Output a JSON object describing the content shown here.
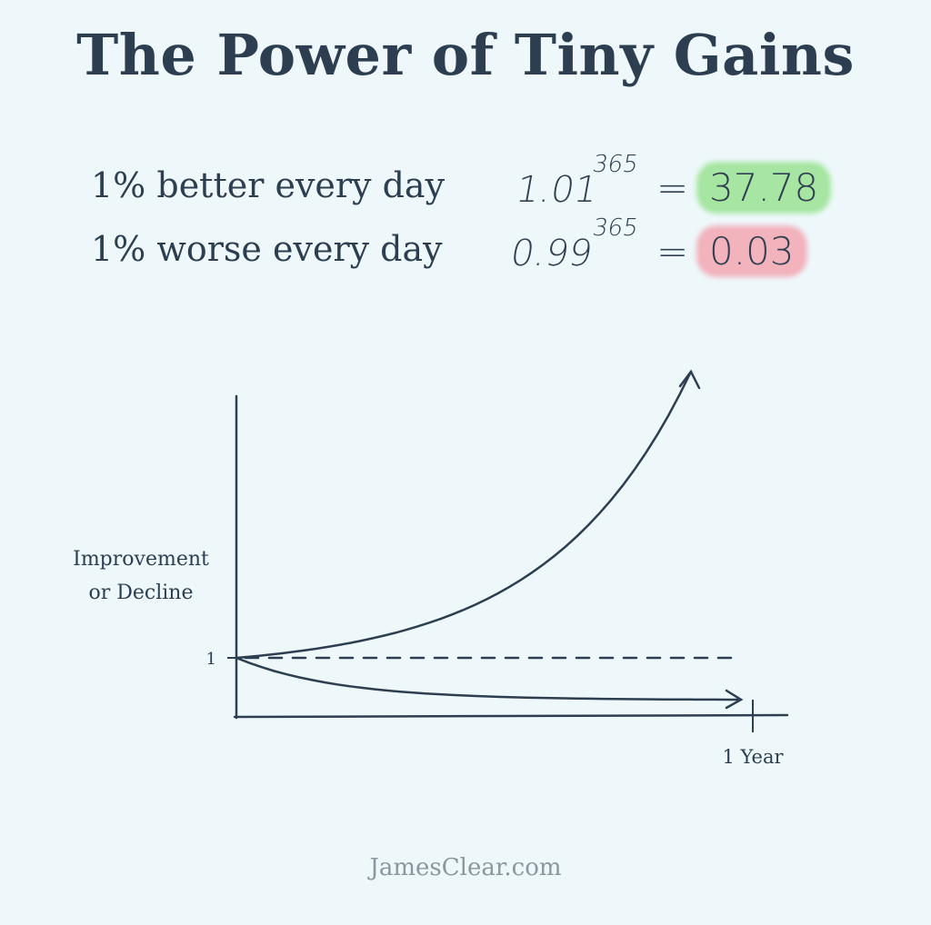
{
  "title": "The Power of Tiny Gains",
  "equations": [
    {
      "label": "1% better every day",
      "base": "1.01",
      "exponent": "365",
      "equals": "=",
      "result": "37.78",
      "tone": "good"
    },
    {
      "label": "1% worse every day",
      "base": "0.99",
      "exponent": "365",
      "equals": "=",
      "result": "0.03",
      "tone": "bad"
    }
  ],
  "chart_data": {
    "type": "line",
    "ylabel": "Improvement or Decline",
    "ylabel_lines": [
      "Improvement",
      "or Decline"
    ],
    "y_tick_label": "1",
    "x_tick_label": "1 Year",
    "x": [
      0,
      365
    ],
    "series": [
      {
        "name": "",
        "style": "solid-arrow",
        "values": [
          1,
          37.78
        ]
      },
      {
        "name": "",
        "style": "solid-arrow",
        "values": [
          1,
          0.03
        ]
      },
      {
        "name": "",
        "style": "dashed",
        "values": [
          1,
          1
        ]
      }
    ],
    "grid": false,
    "legend": "none"
  },
  "colors": {
    "good_highlight": "#a6e6a2",
    "bad_highlight": "#f2b3bd",
    "ink": "#2c3e50"
  },
  "footer": "JamesClear.com"
}
